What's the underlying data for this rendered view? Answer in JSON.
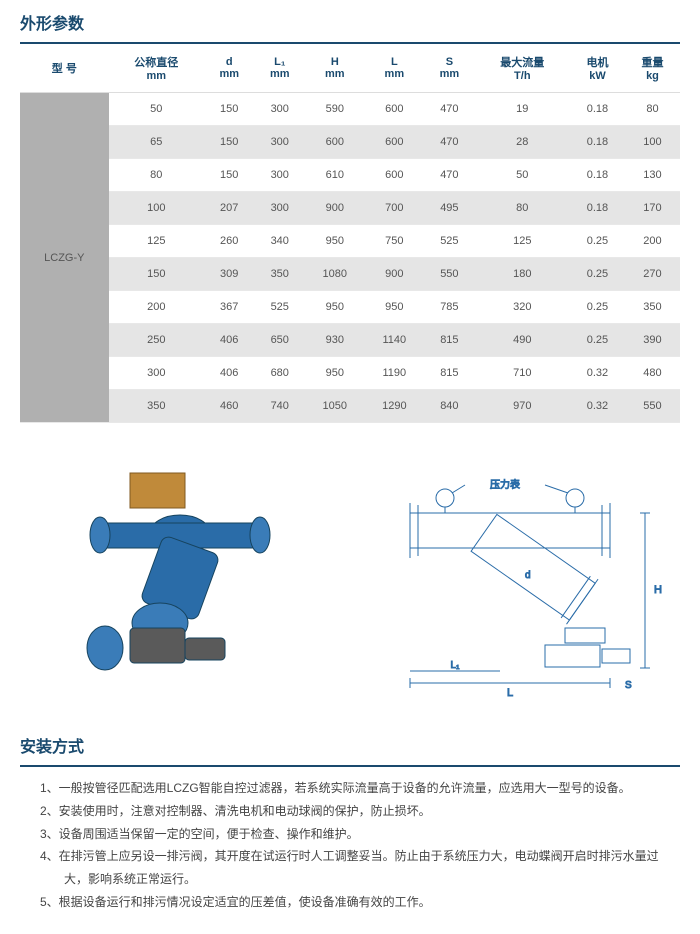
{
  "section1": {
    "title": "外形参数"
  },
  "table": {
    "headers": {
      "c0": "型 号",
      "c1_top": "公称直径",
      "c1_bot": "mm",
      "c2_top": "d",
      "c2_bot": "mm",
      "c3_top": "L₁",
      "c3_bot": "mm",
      "c4_top": "H",
      "c4_bot": "mm",
      "c5_top": "L",
      "c5_bot": "mm",
      "c6_top": "S",
      "c6_bot": "mm",
      "c7_top": "最大流量",
      "c7_bot": "T/h",
      "c8_top": "电机",
      "c8_bot": "kW",
      "c9_top": "重量",
      "c9_bot": "kg"
    },
    "model": "LCZG-Y",
    "rows": [
      {
        "c1": "50",
        "c2": "150",
        "c3": "300",
        "c4": "590",
        "c5": "600",
        "c6": "470",
        "c7": "19",
        "c8": "0.18",
        "c9": "80"
      },
      {
        "c1": "65",
        "c2": "150",
        "c3": "300",
        "c4": "600",
        "c5": "600",
        "c6": "470",
        "c7": "28",
        "c8": "0.18",
        "c9": "100"
      },
      {
        "c1": "80",
        "c2": "150",
        "c3": "300",
        "c4": "610",
        "c5": "600",
        "c6": "470",
        "c7": "50",
        "c8": "0.18",
        "c9": "130"
      },
      {
        "c1": "100",
        "c2": "207",
        "c3": "300",
        "c4": "900",
        "c5": "700",
        "c6": "495",
        "c7": "80",
        "c8": "0.18",
        "c9": "170"
      },
      {
        "c1": "125",
        "c2": "260",
        "c3": "340",
        "c4": "950",
        "c5": "750",
        "c6": "525",
        "c7": "125",
        "c8": "0.25",
        "c9": "200"
      },
      {
        "c1": "150",
        "c2": "309",
        "c3": "350",
        "c4": "1080",
        "c5": "900",
        "c6": "550",
        "c7": "180",
        "c8": "0.25",
        "c9": "270"
      },
      {
        "c1": "200",
        "c2": "367",
        "c3": "525",
        "c4": "950",
        "c5": "950",
        "c6": "785",
        "c7": "320",
        "c8": "0.25",
        "c9": "350"
      },
      {
        "c1": "250",
        "c2": "406",
        "c3": "650",
        "c4": "930",
        "c5": "1140",
        "c6": "815",
        "c7": "490",
        "c8": "0.25",
        "c9": "390"
      },
      {
        "c1": "300",
        "c2": "406",
        "c3": "680",
        "c4": "950",
        "c5": "1190",
        "c6": "815",
        "c7": "710",
        "c8": "0.32",
        "c9": "480"
      },
      {
        "c1": "350",
        "c2": "460",
        "c3": "740",
        "c4": "1050",
        "c5": "1290",
        "c6": "840",
        "c7": "970",
        "c8": "0.32",
        "c9": "550"
      }
    ]
  },
  "diagram": {
    "gauge_label": "压力表",
    "dim_L": "L",
    "dim_L1": "L₁",
    "dim_d": "d",
    "dim_H": "H",
    "dim_S": "S",
    "render_color": "#2a6ca8",
    "line_color": "#2a6ca8",
    "line_width": 1
  },
  "section2": {
    "title": "安装方式",
    "items": [
      "1、一般按管径匹配选用LCZG智能自控过滤器，若系统实际流量高于设备的允许流量，应选用大一型号的设备。",
      "2、安装使用时，注意对控制器、清洗电机和电动球阀的保护，防止损坏。",
      "3、设备周围适当保留一定的空间，便于检查、操作和维护。",
      "4、在排污管上应另设一排污阀，其开度在试运行时人工调整妥当。防止由于系统压力大，电动蝶阀开启时排污水量过大，影响系统正常运行。",
      "5、根据设备运行和排污情况设定适宜的压差值，使设备准确有效的工作。"
    ]
  },
  "colors": {
    "heading": "#1a4a6e",
    "row_alt": "#e5e5e5",
    "model_bg": "#b0b0b0"
  }
}
